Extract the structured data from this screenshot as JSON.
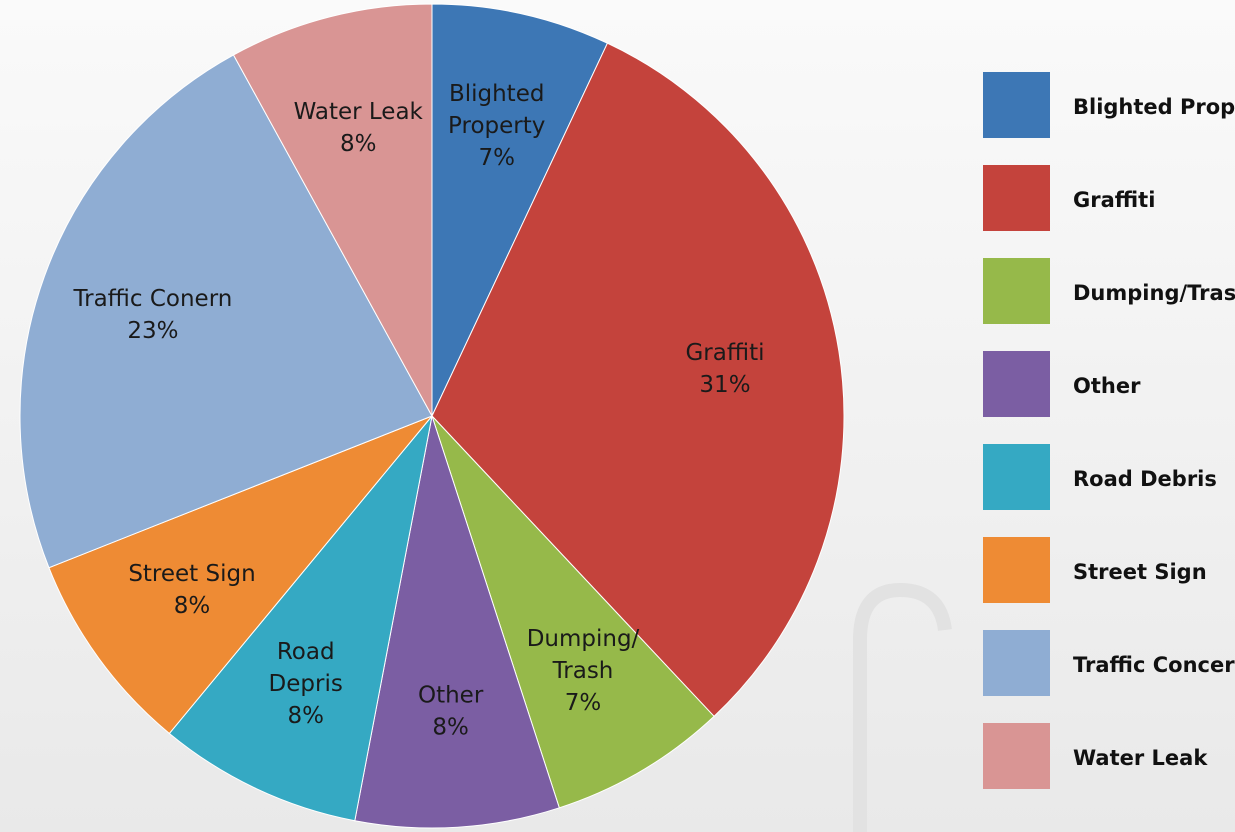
{
  "chart_data": {
    "type": "pie",
    "categories": [
      "Blighted Property",
      "Graffiti",
      "Dumping/Trash",
      "Other",
      "Road Debris",
      "Street Sign",
      "Traffic Concern",
      "Water Leak"
    ],
    "slice_labels": [
      [
        "Blighted",
        "Property"
      ],
      [
        "Graffiti"
      ],
      [
        "Dumping/",
        "Trash"
      ],
      [
        "Other"
      ],
      [
        "Road",
        "Depris"
      ],
      [
        "Street Sign"
      ],
      [
        "Traffic Conern"
      ],
      [
        "Water Leak"
      ]
    ],
    "values": [
      7,
      31,
      7,
      8,
      8,
      8,
      23,
      8
    ],
    "value_labels": [
      "7%",
      "31%",
      "7%",
      "8%",
      "8%",
      "8%",
      "23%",
      "8%"
    ],
    "colors": [
      "#3d77b5",
      "#c4433c",
      "#96b94a",
      "#7b5ea3",
      "#35a9c3",
      "#ee8b34",
      "#8fadd3",
      "#d99594"
    ],
    "legend": "right"
  }
}
